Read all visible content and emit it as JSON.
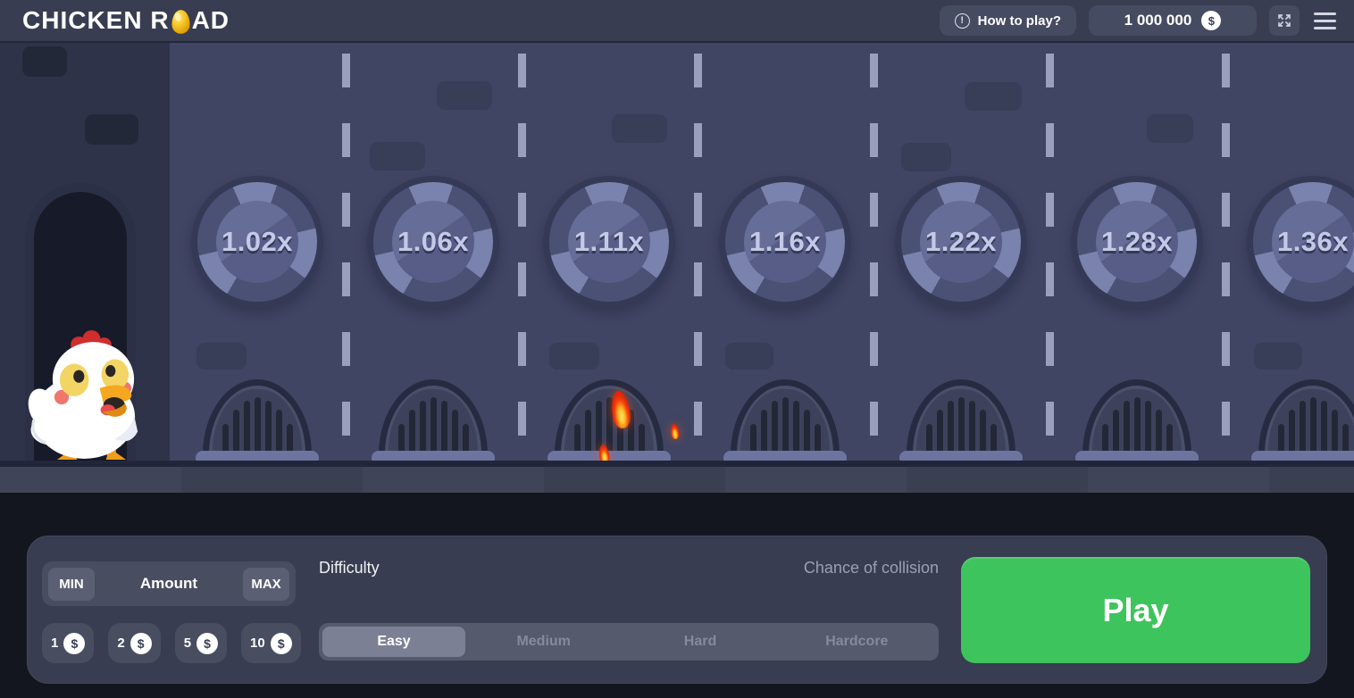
{
  "header": {
    "logo_part1": "CHICKEN R",
    "logo_part2": "AD",
    "how_to_play_label": "How to play?",
    "balance": "1 000 000",
    "currency_symbol": "$"
  },
  "icons": {
    "info": "!",
    "dollar": "$",
    "egg_logo": "egg",
    "fullscreen": "expand-arrows",
    "menu": "hamburger"
  },
  "game": {
    "lanes": [
      {
        "multiplier": "1.02x",
        "on_fire": false
      },
      {
        "multiplier": "1.06x",
        "on_fire": false
      },
      {
        "multiplier": "1.11x",
        "on_fire": true
      },
      {
        "multiplier": "1.16x",
        "on_fire": false
      },
      {
        "multiplier": "1.22x",
        "on_fire": false
      },
      {
        "multiplier": "1.28x",
        "on_fire": false
      },
      {
        "multiplier": "1.36x",
        "on_fire": false
      }
    ],
    "character": "chicken"
  },
  "controls": {
    "min_label": "MIN",
    "amount_label": "Amount",
    "max_label": "MAX",
    "chips": [
      {
        "value": "1",
        "currency": "$"
      },
      {
        "value": "2",
        "currency": "$"
      },
      {
        "value": "5",
        "currency": "$"
      },
      {
        "value": "10",
        "currency": "$"
      }
    ],
    "difficulty_label": "Difficulty",
    "chance_of_collision_label": "Chance of collision",
    "difficulties": [
      "Easy",
      "Medium",
      "Hard",
      "Hardcore"
    ],
    "selected_difficulty": "Easy",
    "play_label": "Play"
  },
  "colors": {
    "top_bar": "#383d51",
    "road": "#404564",
    "start_zone": "#2e3349",
    "lane_dash": "#a9afcc",
    "plate_text": "#c4c9e7",
    "grate_sill": "#6d74a0",
    "flame_orange": "#f5420e",
    "panel": "#383d51",
    "play_green": "#3ec45c",
    "egg_gold": "#f2b31c"
  }
}
